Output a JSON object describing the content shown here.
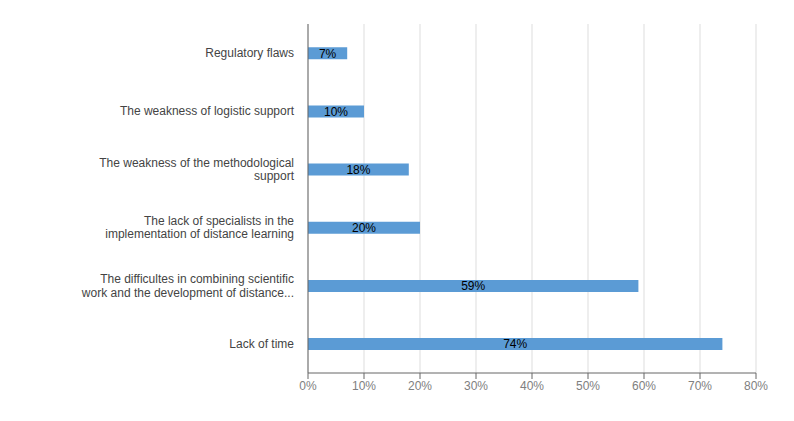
{
  "chart_data": {
    "type": "bar",
    "orientation": "horizontal",
    "categories": [
      "Lack of time",
      "The difficultes in combining scientific\nwork and the development of distance...",
      "The lack of specialists in the\nimplementation of distance learning",
      "The weakness of the methodological\nsupport",
      "The weakness of logistic support",
      "Regulatory flaws"
    ],
    "values": [
      74,
      59,
      20,
      18,
      10,
      7
    ],
    "value_labels": [
      "74%",
      "59%",
      "20%",
      "18%",
      "10%",
      "7%"
    ],
    "data_labels": true,
    "color": "#5b9bd5",
    "xlim": [
      0,
      80
    ],
    "xticks": [
      {
        "value": 0,
        "label": "0%"
      },
      {
        "value": 10,
        "label": "10%"
      },
      {
        "value": 20,
        "label": "20%"
      },
      {
        "value": 30,
        "label": "30%"
      },
      {
        "value": 40,
        "label": "40%"
      },
      {
        "value": 50,
        "label": "50%"
      },
      {
        "value": 60,
        "label": "60%"
      },
      {
        "value": 70,
        "label": "70%"
      },
      {
        "value": 80,
        "label": "80%"
      }
    ],
    "grid": true
  }
}
